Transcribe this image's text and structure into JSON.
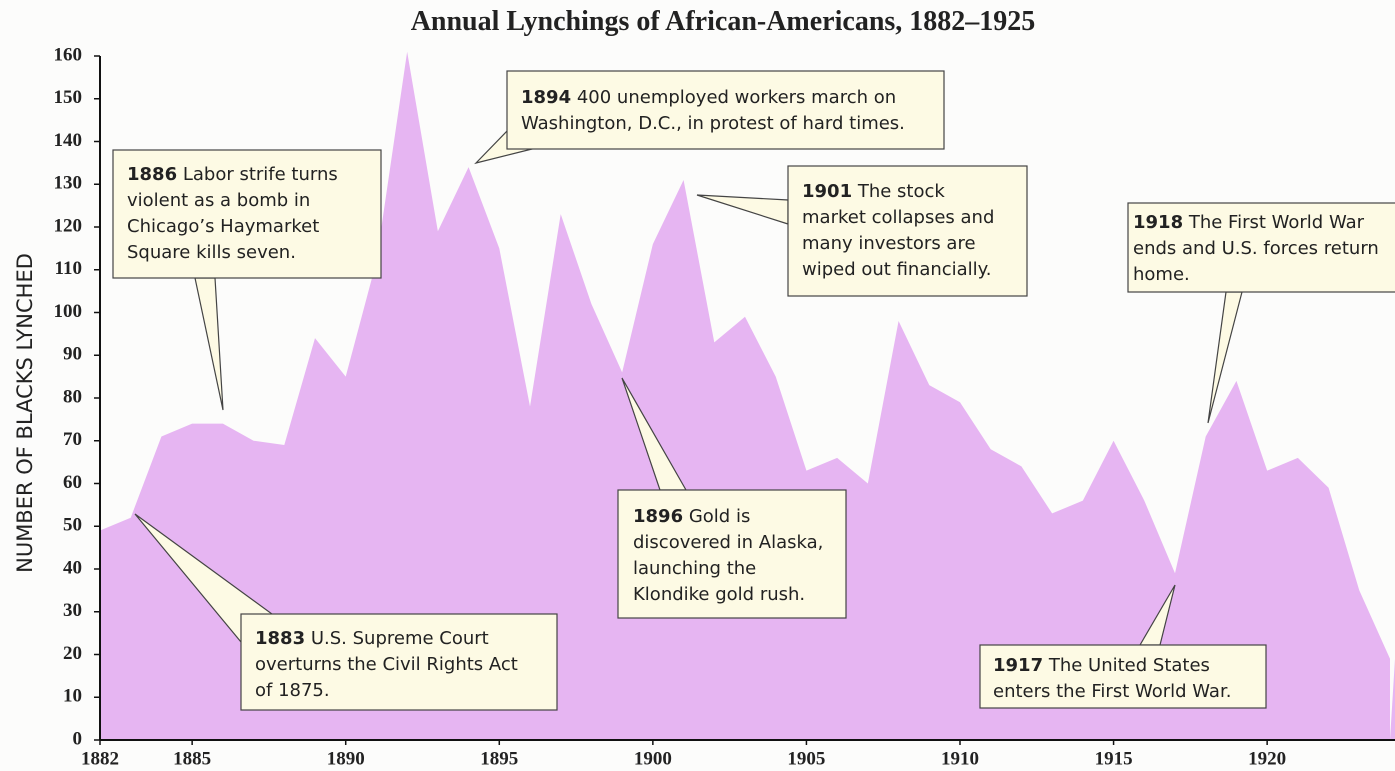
{
  "chart_data": {
    "type": "area",
    "title": "Annual Lynchings of African-Americans, 1882–1925",
    "y_label": "NUMBER OF BLACKS LYNCHED",
    "x": [
      1882,
      1883,
      1884,
      1885,
      1886,
      1887,
      1888,
      1889,
      1890,
      1891,
      1892,
      1893,
      1894,
      1895,
      1896,
      1897,
      1898,
      1899,
      1900,
      1901,
      1902,
      1903,
      1904,
      1905,
      1906,
      1907,
      1908,
      1909,
      1910,
      1911,
      1912,
      1913,
      1914,
      1915,
      1916,
      1917,
      1918,
      1919,
      1920,
      1921,
      1922,
      1923,
      1924
    ],
    "values": [
      49,
      52,
      71,
      74,
      74,
      70,
      69,
      94,
      85,
      112,
      161,
      119,
      134,
      115,
      78,
      123,
      102,
      86,
      116,
      131,
      93,
      99,
      85,
      63,
      66,
      60,
      98,
      83,
      79,
      68,
      64,
      53,
      56,
      70,
      56,
      39,
      71,
      84,
      63,
      66,
      59,
      35,
      19
    ],
    "color": "#e6b5f2",
    "xlim": [
      1882,
      1924
    ],
    "xticks": [
      1882,
      1885,
      1890,
      1895,
      1900,
      1905,
      1910,
      1915,
      1920
    ],
    "ylim": [
      0,
      160
    ],
    "yticks": [
      0,
      10,
      20,
      30,
      40,
      50,
      60,
      70,
      80,
      90,
      100,
      110,
      120,
      130,
      140,
      150,
      160
    ],
    "annotations": [
      {
        "label": "1886",
        "lines": [
          "Labor strife turns",
          "violent as a bomb in",
          "Chicago’s Haymarket",
          "Square kills seven."
        ]
      },
      {
        "label": "1894",
        "lines": [
          "400 unemployed workers march on",
          "Washington, D.C., in protest of hard times."
        ]
      },
      {
        "label": "1901",
        "lines": [
          "The stock",
          "market collapses and",
          "many investors are",
          "wiped out financially."
        ]
      },
      {
        "label": "1918",
        "lines": [
          "The First World War",
          "ends and U.S. forces return",
          "home."
        ]
      },
      {
        "label": "1896",
        "lines": [
          "Gold is",
          "discovered in Alaska,",
          "launching the",
          "Klondike gold rush."
        ]
      },
      {
        "label": "1883",
        "lines": [
          "U.S. Supreme Court",
          "overturns the Civil Rights Act",
          "of 1875."
        ]
      },
      {
        "label": "1917",
        "lines": [
          "The United States",
          "enters the First World War."
        ]
      }
    ]
  }
}
